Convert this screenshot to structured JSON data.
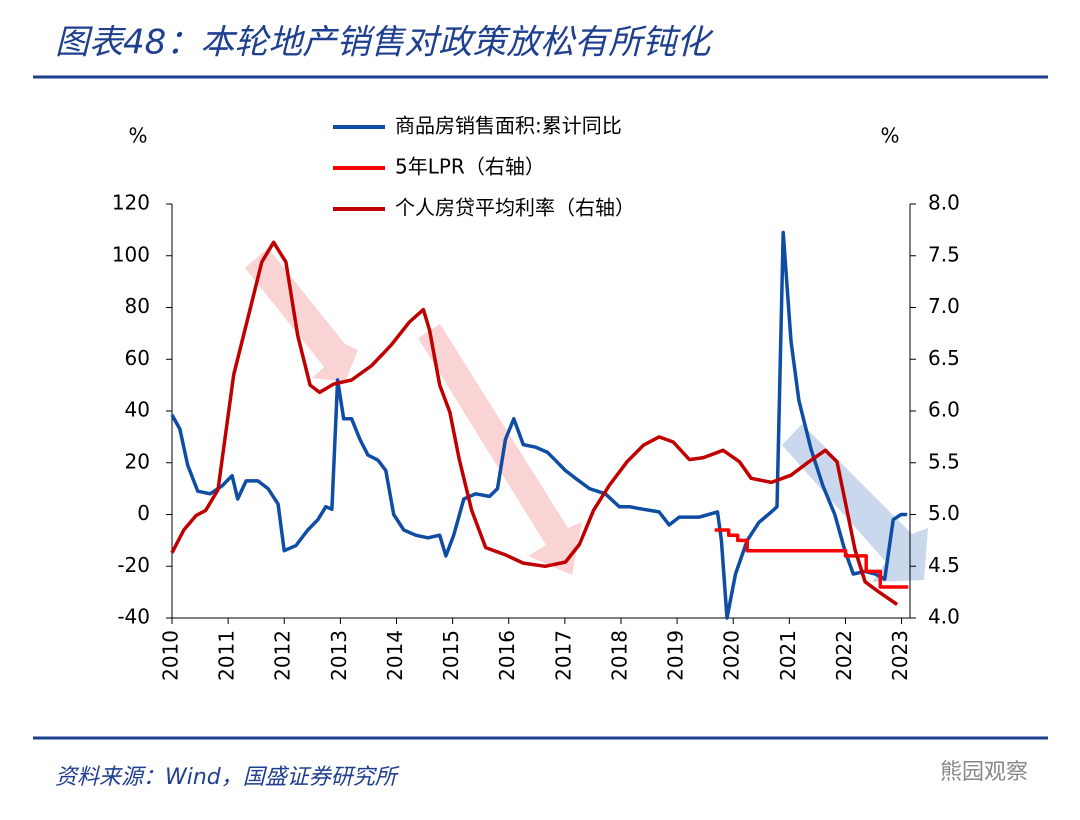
{
  "chart_data": {
    "type": "line",
    "title": "图表48：本轮地产销售对政策放松有所钝化",
    "source": "资料来源：Wind，国盛证券研究所",
    "watermark": "熊园观察",
    "y_unit": "%",
    "y2_unit": "%",
    "xlim": [
      2010,
      2023.15
    ],
    "xticks": [
      2010,
      2011,
      2012,
      2013,
      2014,
      2015,
      2016,
      2017,
      2018,
      2019,
      2020,
      2021,
      2022,
      2023
    ],
    "ylim": [
      -40,
      120
    ],
    "yticks": [
      -40,
      -20,
      0,
      20,
      40,
      60,
      80,
      100,
      120
    ],
    "y2lim": [
      4.0,
      8.0
    ],
    "y2ticks": [
      {
        "value": 4.0,
        "label": "4.0"
      },
      4.5,
      {
        "value": 5.0,
        "label": "5.0"
      },
      5.5,
      {
        "value": 6.0,
        "label": "6.0"
      },
      6.5,
      {
        "value": 7.0,
        "label": "7.0"
      },
      7.5,
      {
        "value": 8.0,
        "label": "8.0"
      }
    ],
    "series": [
      {
        "name": "商品房销售面积:累计同比",
        "color": "#0f4ca3",
        "x": [
          2010.0,
          2010.14,
          2010.28,
          2010.46,
          2010.68,
          2010.89,
          2011.07,
          2011.17,
          2011.32,
          2011.53,
          2011.71,
          2011.89,
          2012.0,
          2012.21,
          2012.42,
          2012.6,
          2012.74,
          2012.85,
          2012.95,
          2013.06,
          2013.2,
          2013.35,
          2013.49,
          2013.67,
          2013.81,
          2013.95,
          2014.13,
          2014.34,
          2014.56,
          2014.77,
          2014.88,
          2015.02,
          2015.2,
          2015.41,
          2015.66,
          2015.8,
          2015.94,
          2016.09,
          2016.26,
          2016.48,
          2016.69,
          2016.83,
          2017.01,
          2017.19,
          2017.44,
          2017.72,
          2017.97,
          2018.15,
          2018.4,
          2018.68,
          2018.86,
          2019.04,
          2019.4,
          2019.72,
          2019.79,
          2019.89,
          2020.04,
          2020.25,
          2020.46,
          2020.68,
          2020.78,
          2020.89,
          2021.03,
          2021.17,
          2021.39,
          2021.6,
          2021.81,
          2021.99,
          2022.14,
          2022.35,
          2022.53,
          2022.7,
          2022.85,
          2022.99,
          2023.1
        ],
        "values": [
          38.5,
          33,
          19,
          9,
          8,
          11,
          15,
          6,
          13,
          13,
          10,
          4,
          -14,
          -12,
          -6,
          -2,
          3,
          2,
          52,
          37,
          37,
          29,
          23,
          21,
          17,
          0,
          -6,
          -8,
          -9,
          -8,
          -16,
          -8,
          6,
          8,
          7,
          10,
          29,
          37,
          27,
          26,
          24,
          21,
          17,
          14,
          10,
          8,
          3,
          3,
          2,
          1,
          -4,
          -1,
          -1,
          1,
          -10,
          -40,
          -23,
          -10,
          -3,
          1,
          3,
          109,
          67,
          44,
          25,
          11,
          0,
          -14,
          -23,
          -22,
          -23,
          -25,
          -2,
          0,
          0
        ]
      },
      {
        "name": "5年LPR（右轴）",
        "color": "#ff0000",
        "axis": "y2",
        "x": [
          2019.67,
          2019.92,
          2019.92,
          2020.08,
          2020.08,
          2020.25,
          2020.25,
          2022.0,
          2022.0,
          2022.37,
          2022.37,
          2022.62,
          2022.62,
          2023.12
        ],
        "values": [
          4.85,
          4.85,
          4.8,
          4.8,
          4.75,
          4.75,
          4.65,
          4.65,
          4.6,
          4.6,
          4.45,
          4.45,
          4.3,
          4.3
        ]
      },
      {
        "name": "个人房贷平均利率（右轴）",
        "color": "#c00000",
        "axis": "y2",
        "x": [
          2010.0,
          2010.21,
          2010.43,
          2010.6,
          2010.82,
          2011.1,
          2011.39,
          2011.6,
          2011.81,
          2012.03,
          2012.24,
          2012.46,
          2012.63,
          2012.88,
          2013.2,
          2013.56,
          2013.91,
          2014.23,
          2014.48,
          2014.59,
          2014.77,
          2014.95,
          2015.12,
          2015.34,
          2015.59,
          2015.94,
          2016.26,
          2016.65,
          2017.01,
          2017.26,
          2017.51,
          2017.79,
          2018.11,
          2018.4,
          2018.68,
          2018.93,
          2019.22,
          2019.47,
          2019.82,
          2020.11,
          2020.32,
          2020.68,
          2021.03,
          2021.35,
          2021.64,
          2021.85,
          2021.99,
          2022.17,
          2022.35,
          2022.6,
          2022.92
        ],
        "values": [
          4.63,
          4.85,
          4.99,
          5.04,
          5.24,
          6.35,
          6.98,
          7.44,
          7.63,
          7.44,
          6.73,
          6.25,
          6.18,
          6.26,
          6.3,
          6.44,
          6.64,
          6.86,
          6.98,
          6.78,
          6.25,
          5.99,
          5.53,
          5.04,
          4.68,
          4.61,
          4.53,
          4.5,
          4.54,
          4.71,
          5.04,
          5.28,
          5.51,
          5.67,
          5.75,
          5.7,
          5.53,
          5.55,
          5.62,
          5.51,
          5.35,
          5.31,
          5.38,
          5.51,
          5.62,
          5.51,
          5.14,
          4.66,
          4.35,
          4.25,
          4.13
        ]
      }
    ]
  }
}
